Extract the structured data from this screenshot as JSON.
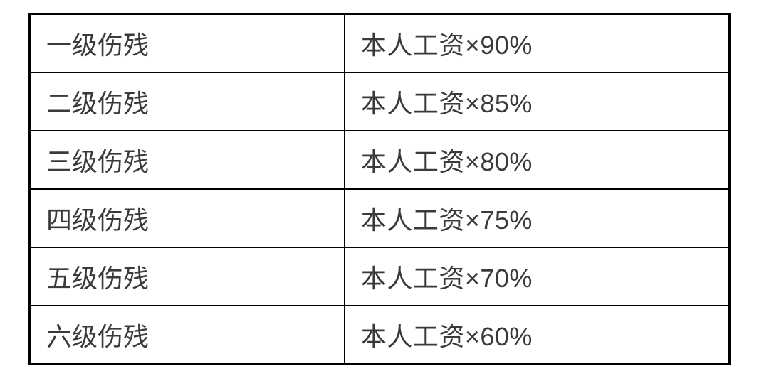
{
  "table": {
    "type": "table",
    "border_color": "#000000",
    "text_color": "#3a3a3a",
    "background_color": "#ffffff",
    "font_size_pt": 27,
    "columns": [
      {
        "key": "level",
        "width_percent": 45,
        "align": "left"
      },
      {
        "key": "formula",
        "width_percent": 55,
        "align": "left"
      }
    ],
    "rows": [
      {
        "level": "一级伤残",
        "formula": "本人工资×90%"
      },
      {
        "level": "二级伤残",
        "formula": "本人工资×85%"
      },
      {
        "level": "三级伤残",
        "formula": "本人工资×80%"
      },
      {
        "level": "四级伤残",
        "formula": "本人工资×75%"
      },
      {
        "level": "五级伤残",
        "formula": "本人工资×70%"
      },
      {
        "level": "六级伤残",
        "formula": "本人工资×60%"
      }
    ]
  }
}
